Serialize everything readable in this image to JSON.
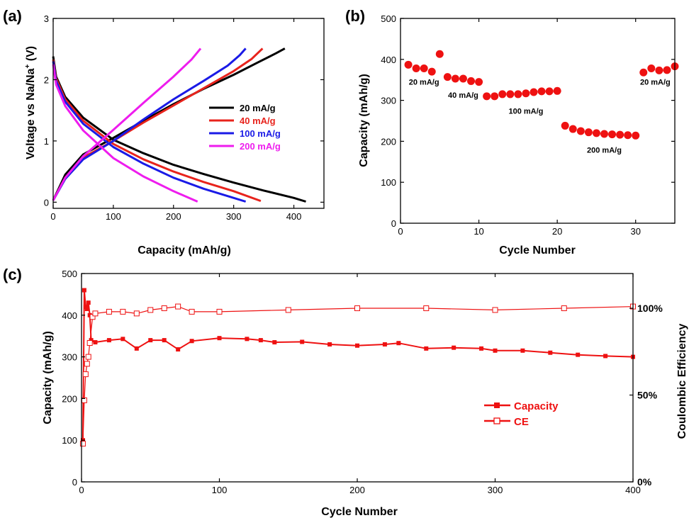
{
  "figure": {
    "panel_a_label": "(a)",
    "panel_b_label": "(b)",
    "panel_c_label": "(c)"
  },
  "colors": {
    "black": "#000000",
    "red": "#e8231c",
    "blue": "#1a1ae6",
    "magenta": "#ee1cee",
    "marker_red": "#ee1111"
  },
  "chart_data": [
    {
      "panel": "a",
      "type": "line",
      "xlabel": "Capacity (mAh/g)",
      "ylabel_parts": [
        "Voltage vs Na/Na",
        "+",
        " (V)"
      ],
      "xlim": [
        0,
        450
      ],
      "ylim": [
        -0.1,
        3
      ],
      "xticks": [
        0,
        100,
        200,
        300,
        400
      ],
      "yticks": [
        0,
        1,
        2,
        3
      ],
      "legend_position": "right",
      "series": [
        {
          "name": "20  mA/g",
          "color": "#000000",
          "charge": [
            [
              0,
              0.03
            ],
            [
              20,
              0.45
            ],
            [
              50,
              0.78
            ],
            [
              100,
              1.05
            ],
            [
              150,
              1.33
            ],
            [
              200,
              1.6
            ],
            [
              250,
              1.85
            ],
            [
              300,
              2.08
            ],
            [
              340,
              2.28
            ],
            [
              370,
              2.43
            ],
            [
              385,
              2.51
            ]
          ],
          "discharge": [
            [
              0,
              2.38
            ],
            [
              5,
              2.05
            ],
            [
              20,
              1.72
            ],
            [
              50,
              1.38
            ],
            [
              100,
              1.02
            ],
            [
              150,
              0.8
            ],
            [
              200,
              0.61
            ],
            [
              250,
              0.46
            ],
            [
              300,
              0.32
            ],
            [
              350,
              0.19
            ],
            [
              400,
              0.07
            ],
            [
              420,
              0.01
            ]
          ]
        },
        {
          "name": "40  mA/g",
          "color": "#e8231c",
          "charge": [
            [
              0,
              0.03
            ],
            [
              20,
              0.4
            ],
            [
              50,
              0.73
            ],
            [
              100,
              1.0
            ],
            [
              150,
              1.3
            ],
            [
              200,
              1.58
            ],
            [
              250,
              1.86
            ],
            [
              300,
              2.14
            ],
            [
              330,
              2.34
            ],
            [
              348,
              2.51
            ]
          ],
          "discharge": [
            [
              0,
              2.33
            ],
            [
              5,
              2.02
            ],
            [
              20,
              1.68
            ],
            [
              50,
              1.33
            ],
            [
              100,
              0.95
            ],
            [
              150,
              0.7
            ],
            [
              200,
              0.5
            ],
            [
              250,
              0.33
            ],
            [
              300,
              0.18
            ],
            [
              345,
              0.02
            ]
          ]
        },
        {
          "name": "100  mA/g",
          "color": "#1a1ae6",
          "charge": [
            [
              0,
              0.03
            ],
            [
              20,
              0.38
            ],
            [
              50,
              0.7
            ],
            [
              100,
              1.0
            ],
            [
              150,
              1.35
            ],
            [
              200,
              1.68
            ],
            [
              250,
              1.98
            ],
            [
              290,
              2.23
            ],
            [
              310,
              2.4
            ],
            [
              320,
              2.51
            ]
          ],
          "discharge": [
            [
              0,
              2.3
            ],
            [
              5,
              1.98
            ],
            [
              20,
              1.64
            ],
            [
              50,
              1.28
            ],
            [
              100,
              0.9
            ],
            [
              150,
              0.63
            ],
            [
              200,
              0.4
            ],
            [
              250,
              0.22
            ],
            [
              300,
              0.07
            ],
            [
              320,
              0.01
            ]
          ]
        },
        {
          "name": "200  mA/g",
          "color": "#ee1cee",
          "charge": [
            [
              0,
              0.03
            ],
            [
              20,
              0.4
            ],
            [
              50,
              0.75
            ],
            [
              100,
              1.18
            ],
            [
              150,
              1.62
            ],
            [
              200,
              2.05
            ],
            [
              230,
              2.33
            ],
            [
              245,
              2.51
            ]
          ],
          "discharge": [
            [
              0,
              2.25
            ],
            [
              5,
              1.92
            ],
            [
              20,
              1.57
            ],
            [
              50,
              1.17
            ],
            [
              100,
              0.72
            ],
            [
              150,
              0.42
            ],
            [
              200,
              0.18
            ],
            [
              240,
              0.01
            ]
          ]
        }
      ]
    },
    {
      "panel": "b",
      "type": "scatter",
      "xlabel": "Cycle Number",
      "ylabel": "Capacity (mAh/g)",
      "xlim": [
        0,
        35
      ],
      "ylim": [
        0,
        500
      ],
      "xticks": [
        0,
        10,
        20,
        30
      ],
      "yticks": [
        0,
        100,
        200,
        300,
        400,
        500
      ],
      "points": [
        [
          1,
          387
        ],
        [
          2,
          378
        ],
        [
          3,
          378
        ],
        [
          4,
          370
        ],
        [
          5,
          413
        ],
        [
          6,
          357
        ],
        [
          7,
          353
        ],
        [
          8,
          353
        ],
        [
          9,
          347
        ],
        [
          10,
          345
        ],
        [
          11,
          310
        ],
        [
          12,
          310
        ],
        [
          13,
          315
        ],
        [
          14,
          315
        ],
        [
          15,
          315
        ],
        [
          16,
          317
        ],
        [
          17,
          320
        ],
        [
          18,
          322
        ],
        [
          19,
          322
        ],
        [
          20,
          323
        ],
        [
          21,
          238
        ],
        [
          22,
          230
        ],
        [
          23,
          225
        ],
        [
          24,
          222
        ],
        [
          25,
          220
        ],
        [
          26,
          218
        ],
        [
          27,
          217
        ],
        [
          28,
          216
        ],
        [
          29,
          215
        ],
        [
          30,
          214
        ],
        [
          31,
          368
        ],
        [
          32,
          378
        ],
        [
          33,
          373
        ],
        [
          34,
          374
        ],
        [
          35,
          383
        ]
      ],
      "annotations": [
        {
          "text": "20 mA/g",
          "x": 3,
          "y": 338
        },
        {
          "text": "40 mA/g",
          "x": 8,
          "y": 306
        },
        {
          "text": "100 mA/g",
          "x": 16,
          "y": 267
        },
        {
          "text": "200 mA/g",
          "x": 26,
          "y": 172
        },
        {
          "text": "20 mA/g",
          "x": 32.5,
          "y": 338
        }
      ]
    },
    {
      "panel": "c",
      "type": "line",
      "xlabel": "Cycle Number",
      "ylabel": "Capacity (mAh/g)",
      "y2label": "Coulombic Efficiency",
      "xlim": [
        0,
        400
      ],
      "ylim": [
        0,
        500
      ],
      "y2lim": [
        0,
        120
      ],
      "xticks": [
        0,
        100,
        200,
        300,
        400
      ],
      "yticks": [
        0,
        100,
        200,
        300,
        400,
        500
      ],
      "y2ticks": [
        0,
        50,
        100
      ],
      "y2ticklabels": [
        "0%",
        "50%",
        "100%"
      ],
      "legend_position": "center-right",
      "series": [
        {
          "name": "Capacity",
          "marker": "filled-square",
          "color": "#ee1111",
          "points": [
            [
              1,
              100
            ],
            [
              2,
              460
            ],
            [
              3,
              420
            ],
            [
              4,
              415
            ],
            [
              5,
              430
            ],
            [
              6,
              400
            ],
            [
              7,
              340
            ],
            [
              10,
              335
            ],
            [
              20,
              340
            ],
            [
              30,
              343
            ],
            [
              40,
              320
            ],
            [
              50,
              340
            ],
            [
              60,
              340
            ],
            [
              70,
              318
            ],
            [
              80,
              338
            ],
            [
              100,
              345
            ],
            [
              120,
              343
            ],
            [
              130,
              340
            ],
            [
              140,
              335
            ],
            [
              160,
              336
            ],
            [
              180,
              330
            ],
            [
              200,
              327
            ],
            [
              220,
              330
            ],
            [
              230,
              333
            ],
            [
              250,
              320
            ],
            [
              270,
              322
            ],
            [
              290,
              320
            ],
            [
              300,
              315
            ],
            [
              320,
              315
            ],
            [
              340,
              310
            ],
            [
              360,
              305
            ],
            [
              380,
              302
            ],
            [
              400,
              300
            ]
          ]
        },
        {
          "name": "CE",
          "marker": "open-square",
          "color": "#ee1111",
          "points": [
            [
              1,
              22
            ],
            [
              2,
              47
            ],
            [
              3,
              62
            ],
            [
              4,
              68
            ],
            [
              5,
              72
            ],
            [
              6,
              80
            ],
            [
              8,
              95
            ],
            [
              10,
              97
            ],
            [
              20,
              98
            ],
            [
              30,
              98
            ],
            [
              40,
              97
            ],
            [
              50,
              99
            ],
            [
              60,
              100
            ],
            [
              70,
              101
            ],
            [
              80,
              98
            ],
            [
              100,
              98
            ],
            [
              150,
              99
            ],
            [
              200,
              100
            ],
            [
              250,
              100
            ],
            [
              300,
              99
            ],
            [
              350,
              100
            ],
            [
              400,
              101
            ]
          ]
        }
      ]
    }
  ]
}
